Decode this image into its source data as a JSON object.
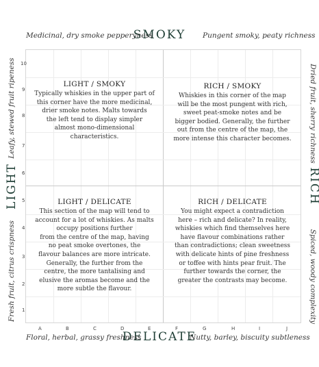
{
  "axes": {
    "top": "SMOKY",
    "bottom": "DELICATE",
    "left": "LIGHT",
    "right": "RICH"
  },
  "corners": {
    "top_left": "Medicinal, dry smoke pepperyness",
    "top_right": "Pungent smoky, peaty richness",
    "bottom_left": "Floral, herbal, grassy freshness",
    "bottom_right": "Nutty, barley, biscuity subtleness"
  },
  "sides": {
    "left_upper": "Leafy, stewed fruit ripeness",
    "left_lower": "Fresh fruit, citrus crispness",
    "right_upper": "Dried fruit, sherry richness",
    "right_lower": "Spiced, woody complexity"
  },
  "y_ticks": [
    "10",
    "9",
    "8",
    "7",
    "6",
    "5",
    "4",
    "3",
    "2",
    "1"
  ],
  "x_ticks": [
    "A",
    "B",
    "C",
    "D",
    "E",
    "F",
    "G",
    "H",
    "I",
    "J"
  ],
  "quadrants": {
    "light_smoky": {
      "title": "LIGHT / SMOKY",
      "lines": [
        "Typically whiskies in the upper part of",
        "this corner have the more medicinal,",
        "drier smoke notes. Malts towards",
        "the left tend to display simpler",
        "almost mono-dimensional",
        "characteristics."
      ]
    },
    "rich_smoky": {
      "title": "RICH / SMOKY",
      "lines": [
        "Whiskies in this corner of the map",
        "will be the most pungent with rich,",
        "sweet peat-smoke notes and be",
        "bigger bodied. Generally, the further",
        "out from the centre of the map, the",
        "more intense this character becomes."
      ]
    },
    "light_delicate": {
      "title": "LIGHT / DELICATE",
      "lines": [
        "This section of the map will tend to",
        "account for a lot of whiskies. As malts",
        "occupy positions further",
        "from the centre of the map, having",
        "no peat smoke overtones, the",
        "flavour balances are more intricate.",
        "Generally, the further from the",
        "centre, the more tantalising and",
        "elusive the aromas become and the",
        "more subtle the flavour."
      ]
    },
    "rich_delicate": {
      "title": "RICH / DELICATE",
      "lines": [
        "You might expect a contradiction",
        "here – rich and delicate? In reality,",
        "whiskies which find themselves here",
        "have flavour combinations rather",
        "than contradictions; clean sweetness",
        "with delicate hints of pine freshness",
        "or toffee with hints pear fruit. The",
        "further towards the corner, the",
        "greater the contrasts may become."
      ]
    }
  }
}
